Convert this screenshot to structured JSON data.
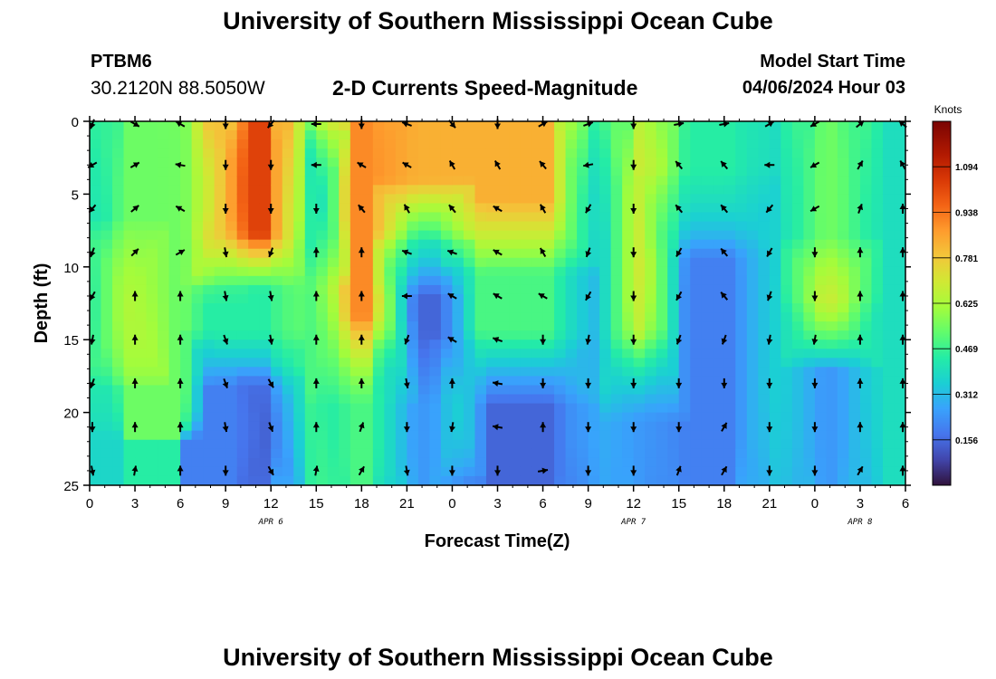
{
  "header": {
    "title": "University of Southern Mississippi Ocean Cube",
    "station_id": "PTBM6",
    "station_coords": "30.2120N  88.5050W",
    "product": "2-D Currents Speed-Magnitude",
    "model_start_label": "Model Start Time",
    "model_start_value": "04/06/2024 Hour 03"
  },
  "footer": {
    "title": "University of Southern Mississippi Ocean Cube"
  },
  "chart_data": {
    "type": "heatmap",
    "title": "2-D Currents Speed-Magnitude",
    "xlabel": "Forecast Time(Z)",
    "ylabel": "Depth (ft)",
    "colorbar_label": "Knots",
    "x_range": [
      0,
      54
    ],
    "y_range": [
      0,
      25
    ],
    "y_inverted": true,
    "x_ticks": [
      0,
      3,
      6,
      9,
      12,
      15,
      18,
      21,
      24,
      27,
      30,
      33,
      36,
      39,
      42,
      45,
      48,
      51,
      54
    ],
    "x_tick_labels": [
      "0",
      "3",
      "6",
      "9",
      "12",
      "15",
      "18",
      "21",
      "0",
      "3",
      "6",
      "9",
      "12",
      "15",
      "18",
      "21",
      "0",
      "3",
      "6"
    ],
    "y_ticks": [
      0,
      5,
      10,
      15,
      20,
      25
    ],
    "y_tick_labels": [
      "0",
      "5",
      "10",
      "15",
      "20",
      "25"
    ],
    "date_labels": [
      {
        "x": 12,
        "text": "APR 6"
      },
      {
        "x": 36,
        "text": "APR 7"
      },
      {
        "x": 51,
        "text": "APR 8"
      }
    ],
    "colorbar": {
      "range": [
        0,
        1.25
      ],
      "ticks": [
        0.156,
        0.312,
        0.469,
        0.625,
        0.781,
        0.938,
        1.094
      ],
      "tick_labels": [
        "0.156",
        "0.312",
        "0.469",
        "0.625",
        "0.781",
        "0.938",
        "1.094"
      ]
    },
    "speed_features": [
      {
        "t": [
          0,
          1
        ],
        "d": [
          0,
          25
        ],
        "v": 0.38
      },
      {
        "t": [
          1,
          6
        ],
        "d": [
          0,
          18
        ],
        "v": 0.55
      },
      {
        "t": [
          1,
          4
        ],
        "d": [
          9,
          16
        ],
        "v": 0.72
      },
      {
        "t": [
          6,
          9
        ],
        "d": [
          0,
          10
        ],
        "v": 0.56
      },
      {
        "t": [
          8,
          13
        ],
        "d": [
          0,
          9
        ],
        "v": 1.05
      },
      {
        "t": [
          8,
          13
        ],
        "d": [
          10,
          16
        ],
        "v": 0.45
      },
      {
        "t": [
          8,
          13
        ],
        "d": [
          17,
          25
        ],
        "v": 0.2
      },
      {
        "t": [
          11,
          13
        ],
        "d": [
          19,
          24
        ],
        "v": 0.1
      },
      {
        "t": [
          13,
          15
        ],
        "d": [
          0,
          25
        ],
        "v": 0.55
      },
      {
        "t": [
          15,
          16
        ],
        "d": [
          2,
          9
        ],
        "v": 0.22
      },
      {
        "t": [
          15,
          16
        ],
        "d": [
          10,
          25
        ],
        "v": 0.4
      },
      {
        "t": [
          16,
          20
        ],
        "d": [
          0,
          16
        ],
        "v": 0.92
      },
      {
        "t": [
          16,
          20
        ],
        "d": [
          16,
          25
        ],
        "v": 0.5
      },
      {
        "t": [
          20,
          24
        ],
        "d": [
          0,
          6
        ],
        "v": 0.85
      },
      {
        "t": [
          20,
          24
        ],
        "d": [
          6,
          10
        ],
        "v": 0.45
      },
      {
        "t": [
          20,
          24
        ],
        "d": [
          10,
          17
        ],
        "v": 0.15
      },
      {
        "t": [
          20,
          24
        ],
        "d": [
          17,
          25
        ],
        "v": 0.25
      },
      {
        "t": [
          24,
          25
        ],
        "d": [
          17,
          23
        ],
        "v": 0.45
      },
      {
        "t": [
          25,
          32
        ],
        "d": [
          0,
          8
        ],
        "v": 0.85
      },
      {
        "t": [
          25,
          32
        ],
        "d": [
          8,
          17
        ],
        "v": 0.5
      },
      {
        "t": [
          25,
          32
        ],
        "d": [
          17,
          25
        ],
        "v": 0.15
      },
      {
        "t": [
          32,
          35
        ],
        "d": [
          0,
          25
        ],
        "v": 0.3
      },
      {
        "t": [
          35,
          38
        ],
        "d": [
          0,
          17
        ],
        "v": 0.75
      },
      {
        "t": [
          35,
          38
        ],
        "d": [
          17,
          25
        ],
        "v": 0.25
      },
      {
        "t": [
          38,
          44
        ],
        "d": [
          0,
          7
        ],
        "v": 0.45
      },
      {
        "t": [
          38,
          44
        ],
        "d": [
          7,
          25
        ],
        "v": 0.2
      },
      {
        "t": [
          44,
          47
        ],
        "d": [
          0,
          25
        ],
        "v": 0.38
      },
      {
        "t": [
          47,
          51
        ],
        "d": [
          0,
          10
        ],
        "v": 0.55
      },
      {
        "t": [
          47,
          51
        ],
        "d": [
          10,
          15
        ],
        "v": 0.7
      },
      {
        "t": [
          47,
          51
        ],
        "d": [
          15,
          25
        ],
        "v": 0.25
      },
      {
        "t": [
          51,
          54
        ],
        "d": [
          0,
          25
        ],
        "v": 0.4
      }
    ],
    "vectors": {
      "times": [
        0,
        3,
        6,
        9,
        12,
        15,
        18,
        21,
        24,
        27,
        30,
        33,
        36,
        39,
        42,
        45,
        48,
        51,
        54
      ],
      "depths": [
        0,
        3,
        6,
        9,
        12,
        15,
        18,
        21,
        24
      ],
      "directions_deg": [
        [
          200,
          240,
          220,
          200,
          210,
          190,
          200,
          180,
          170
        ],
        [
          120,
          60,
          50,
          45,
          0,
          0,
          0,
          0,
          10
        ],
        [
          300,
          280,
          300,
          60,
          0,
          0,
          0,
          0,
          0
        ],
        [
          180,
          180,
          180,
          170,
          170,
          160,
          160,
          170,
          180
        ],
        [
          220,
          180,
          180,
          200,
          170,
          170,
          150,
          160,
          150
        ],
        [
          270,
          270,
          180,
          0,
          0,
          0,
          0,
          0,
          10
        ],
        [
          180,
          300,
          320,
          0,
          0,
          0,
          0,
          20,
          30
        ],
        [
          290,
          300,
          330,
          290,
          270,
          200,
          170,
          180,
          170
        ],
        [
          140,
          330,
          320,
          290,
          300,
          300,
          0,
          190,
          180
        ],
        [
          180,
          330,
          300,
          300,
          300,
          290,
          280,
          280,
          180
        ],
        [
          60,
          320,
          330,
          330,
          300,
          180,
          180,
          0,
          80
        ],
        [
          70,
          260,
          210,
          200,
          210,
          190,
          180,
          180,
          180
        ],
        [
          180,
          180,
          180,
          180,
          180,
          180,
          180,
          180,
          180
        ],
        [
          80,
          320,
          320,
          210,
          210,
          200,
          180,
          180,
          20
        ],
        [
          80,
          320,
          320,
          320,
          320,
          200,
          180,
          30,
          30
        ],
        [
          60,
          270,
          220,
          210,
          200,
          190,
          180,
          180,
          180
        ],
        [
          240,
          240,
          240,
          180,
          180,
          190,
          180,
          180,
          180
        ],
        [
          50,
          30,
          20,
          0,
          0,
          0,
          0,
          0,
          30
        ],
        [
          310,
          330,
          0,
          0,
          0,
          0,
          0,
          0,
          0
        ]
      ]
    }
  }
}
